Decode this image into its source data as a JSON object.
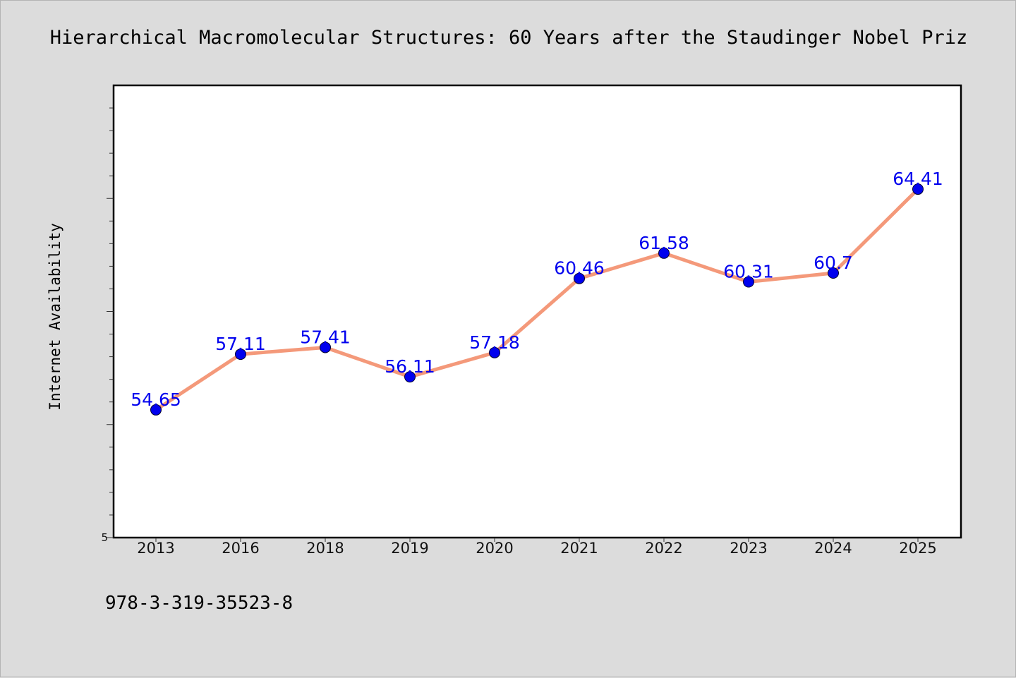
{
  "chart_data": {
    "type": "line",
    "title": "Hierarchical Macromolecular Structures: 60 Years after the Staudinger Nobel Priz",
    "xlabel": "",
    "ylabel": "Internet Availability",
    "categories": [
      "2013",
      "2016",
      "2018",
      "2019",
      "2020",
      "2021",
      "2022",
      "2023",
      "2024",
      "2025"
    ],
    "series": [
      {
        "values": [
          54.65,
          57.11,
          57.41,
          56.11,
          57.18,
          60.46,
          61.58,
          60.31,
          60.7,
          64.41
        ],
        "labels": [
          "54.65",
          "57.11",
          "57.41",
          "56.11",
          "57.18",
          "60.46",
          "61.58",
          "60.31",
          "60.7",
          "64.41"
        ]
      }
    ],
    "y_tick_labels": [
      "5"
    ],
    "ylim": [
      49,
      69
    ],
    "grid": false,
    "legend": "none",
    "colors": {
      "line": "#f4997a",
      "marker": "#0000ee",
      "label": "#0000ee",
      "plot_bg": "#ffffff",
      "figure_bg": "#dcdcdc"
    }
  },
  "footnote": "978-3-319-35523-8"
}
